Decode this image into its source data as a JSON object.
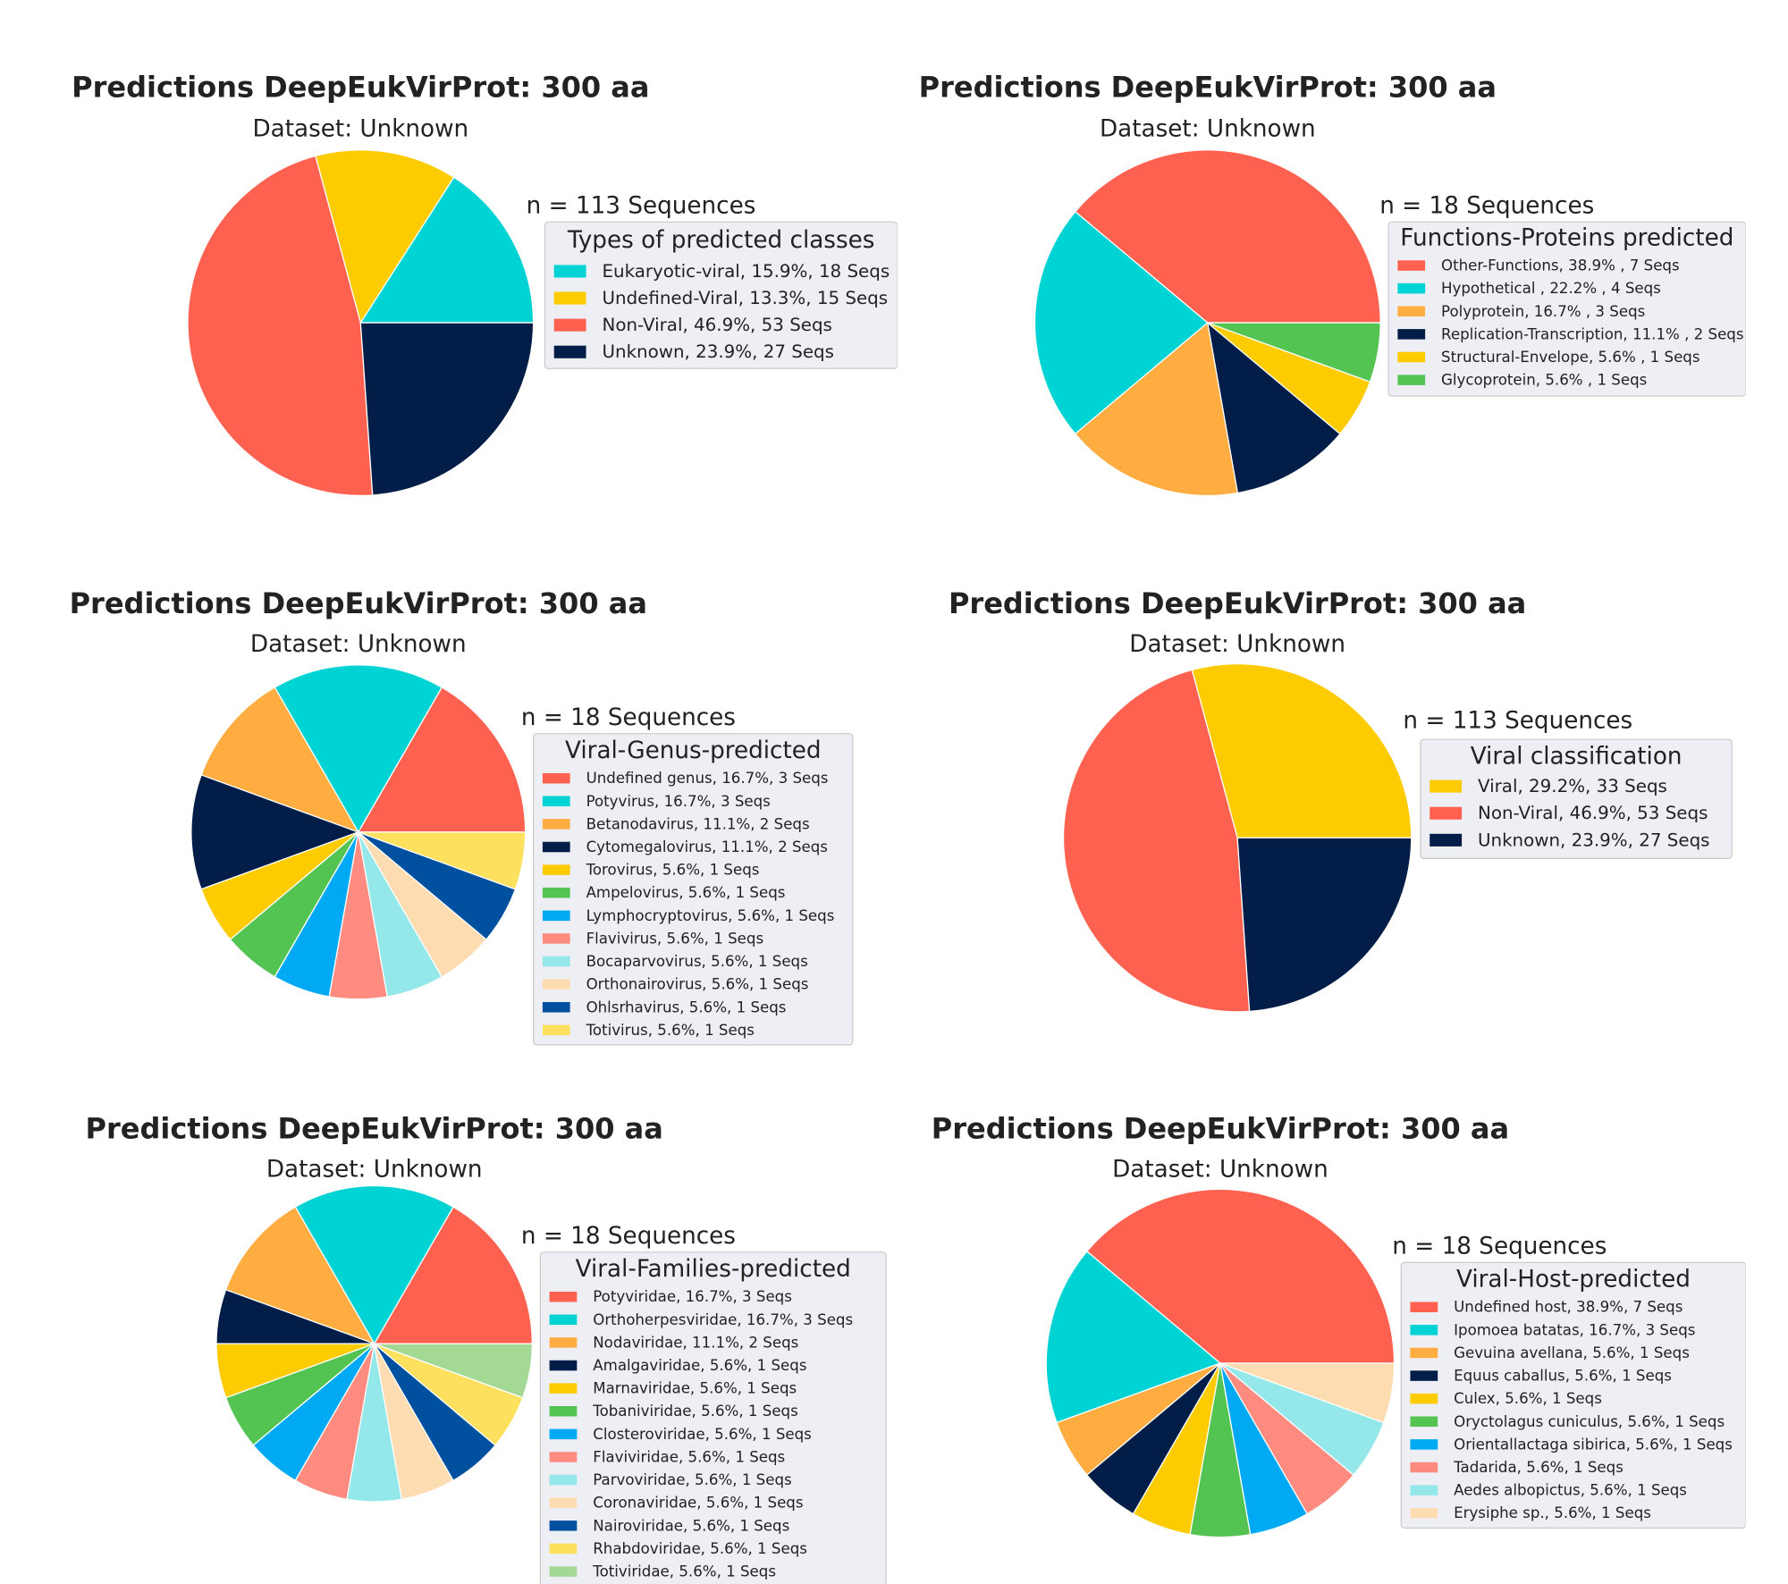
{
  "chart_data": [
    {
      "type": "pie",
      "title": "Predictions DeepEukVirProt: 300 aa",
      "subtitle": "Dataset: Unknown",
      "count_label": "n = 113 Sequences",
      "legend_title": "Types of predicted classes",
      "legend_placement": "right",
      "slices": [
        {
          "label": "Eukaryotic-viral, 15.9%, 18 Seqs",
          "value": 18,
          "color": "#00d3d3"
        },
        {
          "label": "Undefined-Viral, 13.3%, 15 Seqs",
          "value": 15,
          "color": "#fccb00"
        },
        {
          "label": "Non-Viral, 46.9%, 53 Seqs",
          "value": 53,
          "color": "#ff6150"
        },
        {
          "label": "Unknown, 23.9%, 27 Seqs",
          "value": 27,
          "color": "#021d47"
        }
      ]
    },
    {
      "type": "pie",
      "title": "Predictions DeepEukVirProt: 300 aa",
      "subtitle": "Dataset: Unknown",
      "count_label": "n = 18 Sequences",
      "legend_title": "Functions-Proteins predicted",
      "legend_placement": "right",
      "slices": [
        {
          "label": "Other-Functions, 38.9% , 7 Seqs",
          "value": 7,
          "color": "#ff6150"
        },
        {
          "label": "Hypothetical , 22.2% , 4 Seqs",
          "value": 4,
          "color": "#00d3d3"
        },
        {
          "label": "Polyprotein, 16.7% , 3 Seqs",
          "value": 3,
          "color": "#ffac41"
        },
        {
          "label": "Replication-Transcription, 11.1% , 2 Seqs",
          "value": 2,
          "color": "#021d47"
        },
        {
          "label": "Structural-Envelope, 5.6% , 1 Seqs",
          "value": 1,
          "color": "#fccb00"
        },
        {
          "label": "Glycoprotein, 5.6% , 1 Seqs",
          "value": 1,
          "color": "#53c451"
        }
      ]
    },
    {
      "type": "pie",
      "title": "Predictions DeepEukVirProt: 300 aa",
      "subtitle": "Dataset: Unknown",
      "count_label": "n = 18 Sequences",
      "legend_title": "Viral-Genus-predicted",
      "legend_placement": "right",
      "slices": [
        {
          "label": "Undefined genus, 16.7%, 3 Seqs",
          "value": 3,
          "color": "#ff6150"
        },
        {
          "label": "Potyvirus, 16.7%, 3 Seqs",
          "value": 3,
          "color": "#00d3d3"
        },
        {
          "label": "Betanodavirus, 11.1%, 2 Seqs",
          "value": 2,
          "color": "#ffac41"
        },
        {
          "label": "Cytomegalovirus, 11.1%, 2 Seqs",
          "value": 2,
          "color": "#021d47"
        },
        {
          "label": "Torovirus, 5.6%, 1 Seqs",
          "value": 1,
          "color": "#fccb00"
        },
        {
          "label": "Ampelovirus, 5.6%, 1 Seqs",
          "value": 1,
          "color": "#53c451"
        },
        {
          "label": "Lymphocryptovirus, 5.6%, 1 Seqs",
          "value": 1,
          "color": "#00a9f4"
        },
        {
          "label": "Flavivirus, 5.6%, 1 Seqs",
          "value": 1,
          "color": "#fd8b7f"
        },
        {
          "label": "Bocaparvovirus, 5.6%, 1 Seqs",
          "value": 1,
          "color": "#95e8ea"
        },
        {
          "label": "Orthonairovirus, 5.6%, 1 Seqs",
          "value": 1,
          "color": "#fddcb1"
        },
        {
          "label": "Ohlsrhavirus, 5.6%, 1 Seqs",
          "value": 1,
          "color": "#0050a0"
        },
        {
          "label": "Totivirus, 5.6%, 1 Seqs",
          "value": 1,
          "color": "#fde05e"
        }
      ]
    },
    {
      "type": "pie",
      "title": "Predictions DeepEukVirProt: 300 aa",
      "subtitle": "Dataset: Unknown",
      "count_label": "n = 113 Sequences",
      "legend_title": "Viral classification",
      "legend_placement": "right",
      "slices": [
        {
          "label": "Viral, 29.2%, 33 Seqs",
          "value": 33,
          "color": "#fccb00"
        },
        {
          "label": "Non-Viral, 46.9%, 53 Seqs",
          "value": 53,
          "color": "#ff6150"
        },
        {
          "label": "Unknown, 23.9%, 27 Seqs",
          "value": 27,
          "color": "#021d47"
        }
      ]
    },
    {
      "type": "pie",
      "title": "Predictions DeepEukVirProt: 300 aa",
      "subtitle": "Dataset: Unknown",
      "count_label": "n = 18 Sequences",
      "legend_title": "Viral-Families-predicted",
      "legend_placement": "right",
      "slices": [
        {
          "label": "Potyviridae, 16.7%, 3 Seqs",
          "value": 3,
          "color": "#ff6150"
        },
        {
          "label": "Orthoherpesviridae, 16.7%, 3 Seqs",
          "value": 3,
          "color": "#00d3d3"
        },
        {
          "label": "Nodaviridae, 11.1%, 2 Seqs",
          "value": 2,
          "color": "#ffac41"
        },
        {
          "label": "Amalgaviridae, 5.6%, 1 Seqs",
          "value": 1,
          "color": "#021d47"
        },
        {
          "label": "Marnaviridae, 5.6%, 1 Seqs",
          "value": 1,
          "color": "#fccb00"
        },
        {
          "label": "Tobaniviridae, 5.6%, 1 Seqs",
          "value": 1,
          "color": "#53c451"
        },
        {
          "label": "Closteroviridae, 5.6%, 1 Seqs",
          "value": 1,
          "color": "#00a9f4"
        },
        {
          "label": "Flaviviridae, 5.6%, 1 Seqs",
          "value": 1,
          "color": "#fd8b7f"
        },
        {
          "label": "Parvoviridae, 5.6%, 1 Seqs",
          "value": 1,
          "color": "#95e8ea"
        },
        {
          "label": "Coronaviridae, 5.6%, 1 Seqs",
          "value": 1,
          "color": "#fddcb1"
        },
        {
          "label": "Nairoviridae, 5.6%, 1 Seqs",
          "value": 1,
          "color": "#0050a0"
        },
        {
          "label": "Rhabdoviridae, 5.6%, 1 Seqs",
          "value": 1,
          "color": "#fde05e"
        },
        {
          "label": "Totiviridae, 5.6%, 1 Seqs",
          "value": 1,
          "color": "#a3d995"
        }
      ]
    },
    {
      "type": "pie",
      "title": "Predictions DeepEukVirProt: 300 aa",
      "subtitle": "Dataset: Unknown",
      "count_label": "n = 18 Sequences",
      "legend_title": "Viral-Host-predicted",
      "legend_placement": "right",
      "slices": [
        {
          "label": "Undefined host, 38.9%, 7 Seqs",
          "value": 7,
          "color": "#ff6150"
        },
        {
          "label": "Ipomoea batatas, 16.7%, 3 Seqs",
          "value": 3,
          "color": "#00d3d3"
        },
        {
          "label": "Gevuina avellana, 5.6%, 1 Seqs",
          "value": 1,
          "color": "#ffac41"
        },
        {
          "label": "Equus caballus, 5.6%, 1 Seqs",
          "value": 1,
          "color": "#021d47"
        },
        {
          "label": "Culex, 5.6%, 1 Seqs",
          "value": 1,
          "color": "#fccb00"
        },
        {
          "label": "Oryctolagus cuniculus, 5.6%, 1 Seqs",
          "value": 1,
          "color": "#53c451"
        },
        {
          "label": "Orientallactaga sibirica, 5.6%, 1 Seqs",
          "value": 1,
          "color": "#00a9f4"
        },
        {
          "label": "Tadarida, 5.6%, 1 Seqs",
          "value": 1,
          "color": "#fd8b7f"
        },
        {
          "label": "Aedes albopictus, 5.6%, 1 Seqs",
          "value": 1,
          "color": "#95e8ea"
        },
        {
          "label": "Erysiphe sp., 5.6%, 1 Seqs",
          "value": 1,
          "color": "#fddcb1"
        }
      ]
    }
  ]
}
